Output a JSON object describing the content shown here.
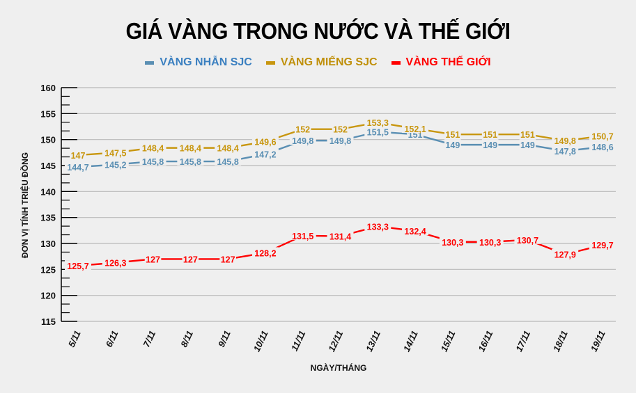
{
  "title": "GIÁ VÀNG TRONG NƯỚC VÀ THẾ GIỚI",
  "legend": [
    {
      "label": "VÀNG NHẪN SJC",
      "color": "#5a8fb3"
    },
    {
      "label": "VÀNG MIẾNG SJC",
      "color": "#c8960e"
    },
    {
      "label": "VÀNG THẾ GIỚI",
      "color": "#ff0000"
    }
  ],
  "legend_text_colors": [
    "#3a7fc0",
    "#c0900a",
    "#ff0000"
  ],
  "colors": {
    "background": "#efefef",
    "grid": "#b9b9b9",
    "axis": "#000000"
  },
  "chart_data": {
    "type": "line",
    "title": "GIÁ VÀNG TRONG NƯỚC VÀ THẾ GIỚI",
    "xlabel": "NGÀY/THÁNG",
    "ylabel": "ĐƠN VỊ TÍNH TRIỆU ĐỒNG",
    "ylim": [
      115,
      160
    ],
    "yticks": [
      115,
      120,
      125,
      130,
      135,
      140,
      145,
      150,
      155,
      160
    ],
    "grid": true,
    "legend_position": "top",
    "categories": [
      "5/11",
      "6/11",
      "7/11",
      "8/11",
      "9/11",
      "10/11",
      "11/11",
      "12/11",
      "13/11",
      "14/11",
      "15/11",
      "16/11",
      "17/11",
      "18/11",
      "19/11"
    ],
    "series": [
      {
        "name": "VÀNG NHẪN SJC",
        "color": "#5a8fb3",
        "values": [
          144.7,
          145.2,
          145.8,
          145.8,
          145.8,
          147.2,
          149.8,
          149.8,
          151.5,
          151,
          149,
          149,
          149,
          147.8,
          148.6
        ],
        "labels": [
          "144,7",
          "145,2",
          "145,8",
          "145,8",
          "145,8",
          "147,2",
          "149,8",
          "149,8",
          "151,5",
          "151",
          "149",
          "149",
          "149",
          "147,8",
          "148,6"
        ]
      },
      {
        "name": "VÀNG MIẾNG SJC",
        "color": "#c8960e",
        "values": [
          147,
          147.5,
          148.4,
          148.4,
          148.4,
          149.6,
          152,
          152,
          153.3,
          152.1,
          151,
          151,
          151,
          149.8,
          150.7
        ],
        "labels": [
          "147",
          "147,5",
          "148,4",
          "148,4",
          "148,4",
          "149,6",
          "152",
          "152",
          "153,3",
          "152,1",
          "151",
          "151",
          "151",
          "149,8",
          "150,7"
        ]
      },
      {
        "name": "VÀNG THẾ GIỚI",
        "color": "#ff0000",
        "values": [
          125.7,
          126.3,
          127,
          127,
          127,
          128.2,
          131.5,
          131.4,
          133.3,
          132.4,
          130.3,
          130.3,
          130.7,
          127.9,
          129.7
        ],
        "labels": [
          "125,7",
          "126,3",
          "127",
          "127",
          "127",
          "128,2",
          "131,5",
          "131,4",
          "133,3",
          "132,4",
          "130,3",
          "130,3",
          "130,7",
          "127,9",
          "129,7"
        ]
      }
    ]
  }
}
